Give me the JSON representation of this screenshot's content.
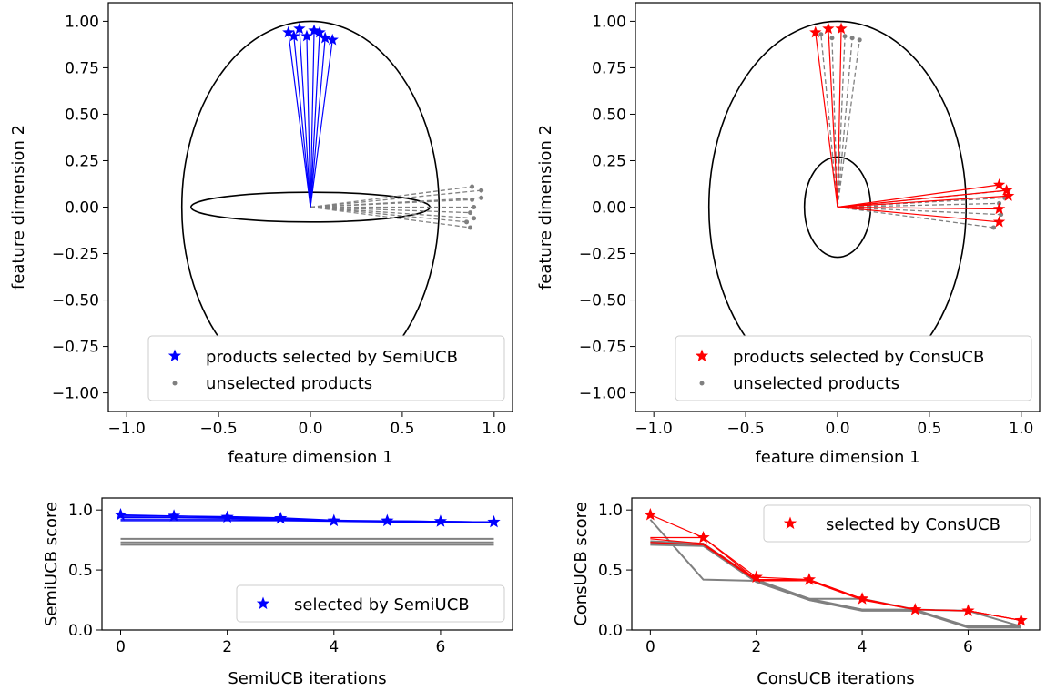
{
  "chart_data": [
    {
      "type": "scatter",
      "xlabel": "feature dimension 1",
      "ylabel": "feature dimension 2",
      "xlim": [
        -1.1,
        1.1
      ],
      "ylim": [
        -1.1,
        1.1
      ],
      "xticks": [
        -1.0,
        -0.5,
        0.0,
        0.5,
        1.0
      ],
      "xtick_labels": [
        "−1.0",
        "−0.5",
        "0.0",
        "0.5",
        "1.0"
      ],
      "yticks": [
        1.0,
        0.75,
        0.5,
        0.25,
        0.0,
        -0.25,
        -0.5,
        -0.75,
        -1.0
      ],
      "ytick_labels": [
        "1.00",
        "0.75",
        "0.50",
        "0.25",
        "0.00",
        "−0.25",
        "−0.50",
        "−0.75",
        "−1.00"
      ],
      "grid": false,
      "legend_position": "lower-right",
      "ellipse_outer": {
        "rx": 0.7,
        "ry": 1.0
      },
      "ellipse_inner": {
        "rx": 0.65,
        "ry": 0.08
      },
      "series": [
        {
          "name": "products selected by SemiUCB",
          "color": "#0000ff",
          "marker": "star",
          "line": "solid",
          "points": [
            [
              -0.12,
              0.94
            ],
            [
              -0.09,
              0.92
            ],
            [
              -0.06,
              0.96
            ],
            [
              -0.02,
              0.92
            ],
            [
              0.02,
              0.95
            ],
            [
              0.05,
              0.94
            ],
            [
              0.08,
              0.91
            ],
            [
              0.12,
              0.9
            ]
          ]
        },
        {
          "name": "unselected products",
          "color": "#808080",
          "marker": "dot",
          "line": "dashed",
          "points": [
            [
              0.88,
              0.11
            ],
            [
              0.93,
              0.09
            ],
            [
              0.93,
              0.05
            ],
            [
              0.88,
              0.04
            ],
            [
              0.89,
              0.0
            ],
            [
              0.87,
              -0.03
            ],
            [
              0.89,
              -0.06
            ],
            [
              0.85,
              -0.08
            ],
            [
              0.87,
              -0.11
            ]
          ]
        }
      ]
    },
    {
      "type": "scatter",
      "xlabel": "feature dimension 1",
      "ylabel": "feature dimension 2",
      "xlim": [
        -1.1,
        1.1
      ],
      "ylim": [
        -1.1,
        1.1
      ],
      "xticks": [
        -1.0,
        -0.5,
        0.0,
        0.5,
        1.0
      ],
      "xtick_labels": [
        "−1.0",
        "−0.5",
        "0.0",
        "0.5",
        "1.0"
      ],
      "yticks": [
        1.0,
        0.75,
        0.5,
        0.25,
        0.0,
        -0.25,
        -0.5,
        -0.75,
        -1.0
      ],
      "ytick_labels": [
        "1.00",
        "0.75",
        "0.50",
        "0.25",
        "0.00",
        "−0.25",
        "−0.50",
        "−0.75",
        "−1.00"
      ],
      "grid": false,
      "legend_position": "lower-right",
      "ellipse_outer": {
        "rx": 0.7,
        "ry": 1.0
      },
      "ellipse_inner": {
        "rx": 0.18,
        "ry": 0.27
      },
      "series": [
        {
          "name": "products selected by ConsUCB",
          "color": "#ff0000",
          "marker": "star",
          "line": "solid",
          "points": [
            [
              -0.12,
              0.94
            ],
            [
              -0.05,
              0.96
            ],
            [
              0.02,
              0.96
            ],
            [
              0.88,
              0.12
            ],
            [
              0.92,
              0.09
            ],
            [
              0.93,
              0.06
            ],
            [
              0.88,
              -0.01
            ],
            [
              0.88,
              -0.08
            ]
          ]
        },
        {
          "name": "unselected products",
          "color": "#808080",
          "marker": "dot",
          "line": "dashed",
          "points": [
            [
              -0.09,
              0.93
            ],
            [
              -0.03,
              0.91
            ],
            [
              0.04,
              0.92
            ],
            [
              0.08,
              0.91
            ],
            [
              0.12,
              0.9
            ],
            [
              0.93,
              0.09
            ],
            [
              0.91,
              0.05
            ],
            [
              0.88,
              0.02
            ],
            [
              0.89,
              -0.04
            ],
            [
              0.85,
              -0.11
            ]
          ]
        }
      ]
    },
    {
      "type": "line",
      "xlabel": "SemiUCB iterations",
      "ylabel": "SemiUCB score",
      "xlim": [
        -0.35,
        7.35
      ],
      "ylim": [
        0,
        1.1
      ],
      "xticks": [
        0,
        2,
        4,
        6
      ],
      "xtick_labels": [
        "0",
        "2",
        "4",
        "6"
      ],
      "yticks": [
        0.0,
        0.5,
        1.0
      ],
      "ytick_labels": [
        "0.0",
        "0.5",
        "1.0"
      ],
      "grid": false,
      "legend_position": "lower-right",
      "x": [
        0,
        1,
        2,
        3,
        4,
        5,
        6,
        7
      ],
      "selected": {
        "name": "selected by SemiUCB",
        "color": "#0000ff",
        "values": [
          0.96,
          0.95,
          0.94,
          0.93,
          0.91,
          0.91,
          0.905,
          0.9
        ]
      },
      "blue_lines": [
        [
          0.96,
          0.95,
          0.94,
          0.93,
          0.91,
          0.91,
          0.905,
          0.9
        ],
        [
          0.95,
          0.95,
          0.945,
          0.935,
          0.915,
          0.91,
          0.905,
          0.9
        ],
        [
          0.94,
          0.94,
          0.935,
          0.925,
          0.91,
          0.91,
          0.905,
          0.9
        ],
        [
          0.935,
          0.935,
          0.93,
          0.92,
          0.91,
          0.905,
          0.9,
          0.9
        ],
        [
          0.92,
          0.92,
          0.92,
          0.915,
          0.91,
          0.905,
          0.9,
          0.9
        ],
        [
          0.91,
          0.91,
          0.91,
          0.91,
          0.905,
          0.9,
          0.9,
          0.9
        ]
      ],
      "gray_lines": [
        [
          0.76,
          0.76,
          0.76,
          0.76,
          0.76,
          0.76,
          0.76,
          0.76
        ],
        [
          0.73,
          0.73,
          0.73,
          0.73,
          0.73,
          0.73,
          0.73,
          0.73
        ],
        [
          0.71,
          0.71,
          0.71,
          0.71,
          0.71,
          0.71,
          0.71,
          0.71
        ]
      ]
    },
    {
      "type": "line",
      "xlabel": "ConsUCB iterations",
      "ylabel": "ConsUCB score",
      "xlim": [
        -0.35,
        7.35
      ],
      "ylim": [
        0,
        1.1
      ],
      "xticks": [
        0,
        2,
        4,
        6
      ],
      "xtick_labels": [
        "0",
        "2",
        "4",
        "6"
      ],
      "yticks": [
        0.0,
        0.5,
        1.0
      ],
      "ytick_labels": [
        "0.0",
        "0.5",
        "1.0"
      ],
      "grid": false,
      "legend_position": "upper-right",
      "x": [
        0,
        1,
        2,
        3,
        4,
        5,
        6,
        7
      ],
      "selected": {
        "name": "selected by ConsUCB",
        "color": "#ff0000",
        "values": [
          0.96,
          0.77,
          0.44,
          0.42,
          0.26,
          0.17,
          0.16,
          0.08
        ]
      },
      "red_lines": [
        [
          0.96,
          0.77,
          0.44,
          0.42,
          0.26,
          0.17,
          0.16,
          0.08
        ],
        [
          0.77,
          0.77,
          0.42,
          0.42,
          0.26,
          0.17,
          0.16,
          0.08
        ],
        [
          0.76,
          0.72,
          0.42,
          0.41,
          0.26,
          0.17,
          0.16,
          0.08
        ],
        [
          0.73,
          0.71,
          0.41,
          0.41,
          0.25,
          0.17,
          0.16,
          0.08
        ]
      ],
      "gray_lines": [
        [
          0.92,
          0.42,
          0.41,
          0.26,
          0.26,
          0.17,
          0.16,
          0.03
        ],
        [
          0.74,
          0.72,
          0.42,
          0.26,
          0.17,
          0.17,
          0.03,
          0.03
        ],
        [
          0.72,
          0.71,
          0.41,
          0.25,
          0.17,
          0.16,
          0.03,
          0.02
        ],
        [
          0.71,
          0.7,
          0.4,
          0.25,
          0.16,
          0.16,
          0.02,
          0.02
        ]
      ]
    }
  ]
}
